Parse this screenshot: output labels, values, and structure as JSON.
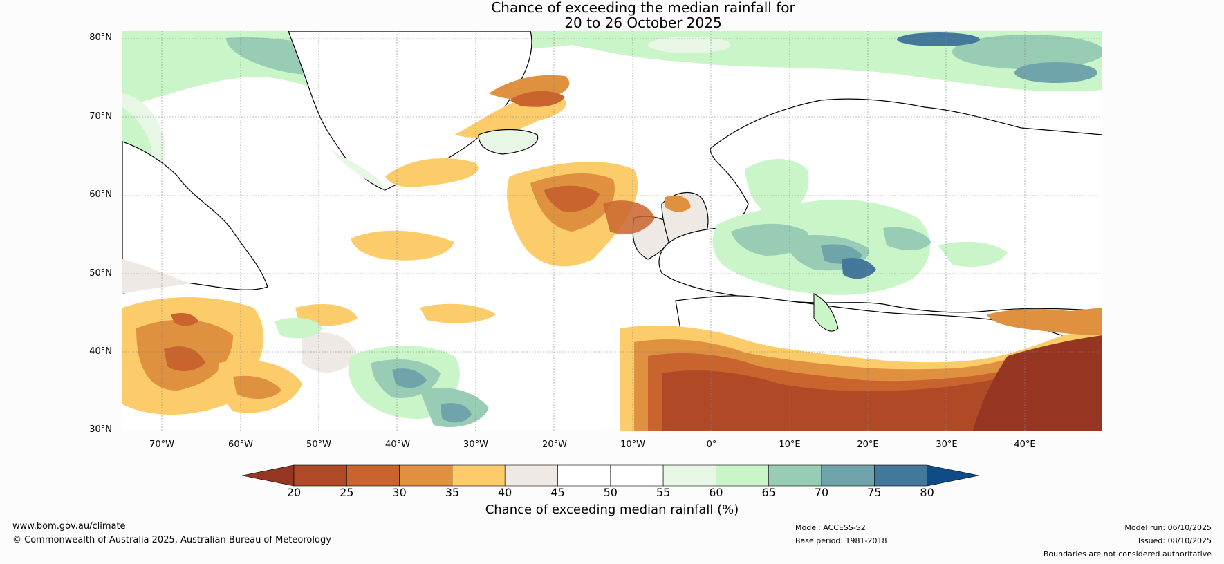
{
  "title": [
    "Chance of exceeding the median rainfall for",
    "20 to 26 October 2025"
  ],
  "lat_labels": [
    "80°N",
    "70°N",
    "60°N",
    "50°N",
    "40°N",
    "30°N"
  ],
  "lon_labels": [
    "70°W",
    "60°W",
    "50°W",
    "40°W",
    "30°W",
    "20°W",
    "10°W",
    "0°",
    "10°E",
    "20°E",
    "30°E",
    "40°E"
  ],
  "colorbar": {
    "ticks": [
      "20",
      "25",
      "30",
      "35",
      "40",
      "45",
      "50",
      "55",
      "60",
      "65",
      "70",
      "75",
      "80"
    ],
    "colors": [
      "#963521",
      "#b04a26",
      "#c9642e",
      "#e0913f",
      "#fdcc6a",
      "#efe9e6",
      "#ffffff",
      "#ffffff",
      "#e8f6e6",
      "#c9f5c8",
      "#99ccb4",
      "#6fa5aa",
      "#44789b",
      "#0f4b87"
    ],
    "label": "Chance of exceeding median rainfall (%)"
  },
  "map_regions": {
    "ocean": "#ffffff",
    "dry_north_africa": "#a8431f",
    "wet_central_europe": "#7fb7ad",
    "wet_greenland": "#6fa5aa"
  },
  "footer": {
    "website": "www.bom.gov.au/climate",
    "copyright": "© Commonwealth of Australia 2025, Australian Bureau of Meteorology",
    "model": "Model: ACCESS-S2",
    "base_period": "Base period: 1981-2018",
    "model_run": "Model run: 06/10/2025",
    "issued": "Issued: 08/10/2025",
    "disclaimer": "Boundaries are not considered authoritative"
  }
}
